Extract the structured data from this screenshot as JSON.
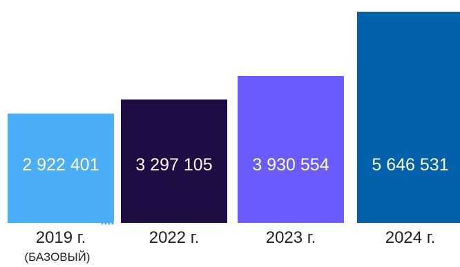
{
  "chart_data": {
    "type": "bar",
    "title": "",
    "xlabel": "",
    "ylabel": "",
    "categories": [
      "2019 г.",
      "2022 г.",
      "2023 г.",
      "2024 г."
    ],
    "category_sublabels": [
      "(БАЗОВЫЙ)",
      "",
      "",
      ""
    ],
    "values": [
      2922401,
      3297105,
      3930554,
      5646531
    ],
    "value_labels": [
      "2 922 401",
      "3 297 105",
      "3 930 554",
      "5 646 531"
    ],
    "bar_colors": [
      "#4aaff8",
      "#1e0d44",
      "#6a5cff",
      "#0161aa"
    ],
    "grid": false,
    "legend": "none",
    "ylim": [
      0,
      5646531
    ]
  }
}
